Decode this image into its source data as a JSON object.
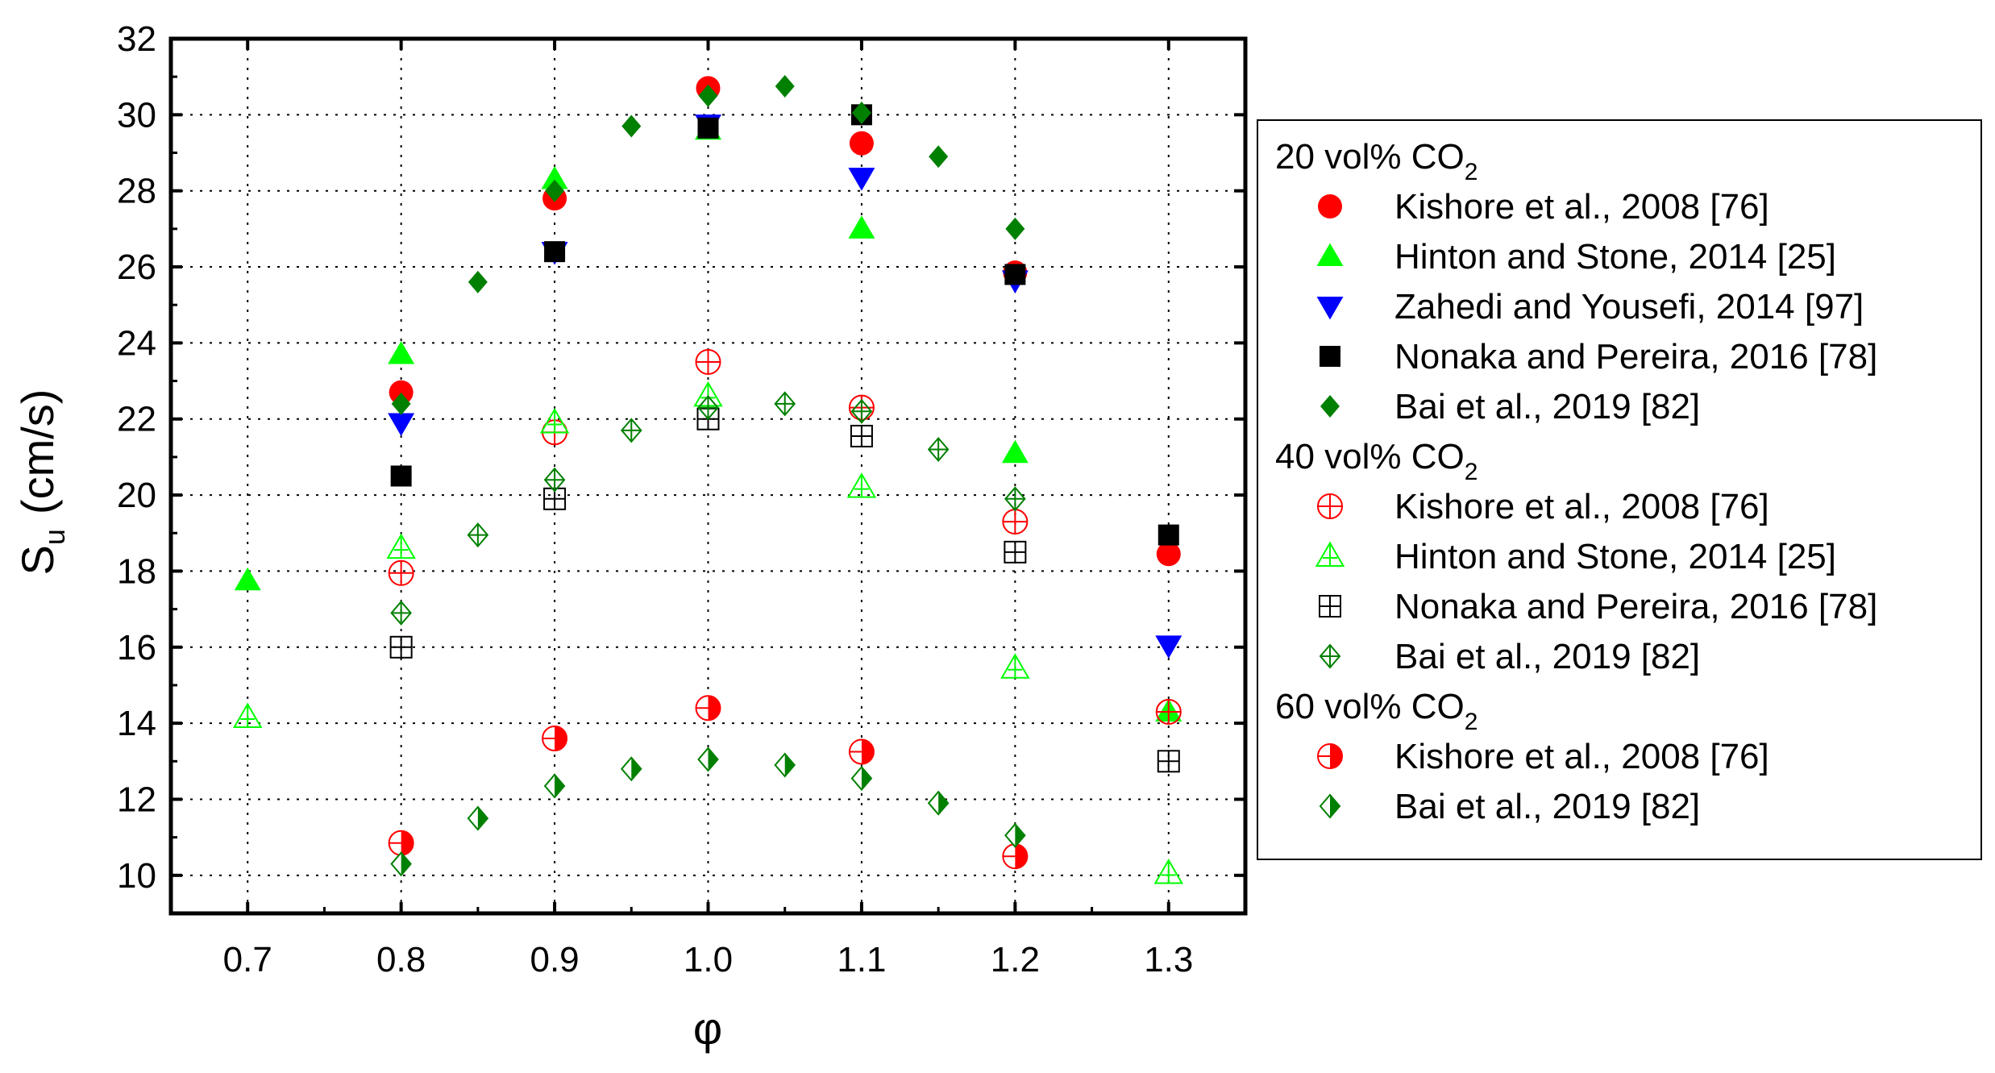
{
  "chart_data": {
    "type": "scatter",
    "xlabel": "φ",
    "ylabel_main": "S",
    "ylabel_sub": "u",
    "ylabel_unit": "(cm/s)",
    "xlim": [
      0.65,
      1.35
    ],
    "ylim": [
      9,
      32
    ],
    "x_ticks": [
      0.7,
      0.8,
      0.9,
      1.0,
      1.1,
      1.2,
      1.3
    ],
    "x_tick_labels": [
      "0.7",
      "0.8",
      "0.9",
      "1.0",
      "1.1",
      "1.2",
      "1.3"
    ],
    "y_ticks": [
      10,
      12,
      14,
      16,
      18,
      20,
      22,
      24,
      26,
      28,
      30,
      32
    ],
    "y_tick_labels": [
      "10",
      "12",
      "14",
      "16",
      "18",
      "20",
      "22",
      "24",
      "26",
      "28",
      "30",
      "32"
    ],
    "grid": true,
    "legend_position": "right, outside plot",
    "colors": {
      "red": "#ff0000",
      "bright_green": "#00ff00",
      "blue": "#0000ff",
      "black": "#000000",
      "dark_green": "#008000"
    },
    "groups": [
      {
        "heading": "20 vol% CO",
        "heading_sub": "2",
        "series": [
          {
            "name": "Kishore et al., 2008 [76]",
            "marker": "circle-filled",
            "color": "#ff0000",
            "points": [
              [
                0.8,
                22.7
              ],
              [
                0.9,
                27.8
              ],
              [
                1.0,
                30.7
              ],
              [
                1.1,
                29.25
              ],
              [
                1.2,
                25.85
              ],
              [
                1.3,
                18.45
              ]
            ]
          },
          {
            "name": "Hinton and Stone, 2014 [25]",
            "marker": "triangle-up-filled",
            "color": "#00ff00",
            "points": [
              [
                0.7,
                17.75
              ],
              [
                0.8,
                23.7
              ],
              [
                0.9,
                28.3
              ],
              [
                1.0,
                29.6
              ],
              [
                1.1,
                27.0
              ],
              [
                1.2,
                21.1
              ],
              [
                1.3,
                14.3
              ]
            ]
          },
          {
            "name": "Zahedi and Yousefi, 2014 [97]",
            "marker": "triangle-down-filled",
            "color": "#0000ff",
            "points": [
              [
                0.8,
                21.9
              ],
              [
                0.9,
                26.4
              ],
              [
                1.0,
                29.75
              ],
              [
                1.1,
                28.35
              ],
              [
                1.2,
                25.65
              ],
              [
                1.3,
                16.05
              ]
            ]
          },
          {
            "name": "Nonaka and Pereira, 2016 [78]",
            "marker": "square-filled",
            "color": "#000000",
            "points": [
              [
                0.8,
                20.5
              ],
              [
                0.9,
                26.4
              ],
              [
                1.0,
                29.65
              ],
              [
                1.1,
                30.0
              ],
              [
                1.2,
                25.8
              ],
              [
                1.3,
                18.95
              ]
            ]
          },
          {
            "name": "Bai et al., 2019 [82]",
            "marker": "diamond-filled",
            "color": "#008000",
            "points": [
              [
                0.8,
                22.4
              ],
              [
                0.85,
                25.6
              ],
              [
                0.9,
                28.0
              ],
              [
                0.95,
                29.7
              ],
              [
                1.0,
                30.5
              ],
              [
                1.05,
                30.75
              ],
              [
                1.1,
                30.05
              ],
              [
                1.15,
                28.9
              ],
              [
                1.2,
                27.0
              ]
            ]
          }
        ]
      },
      {
        "heading": "40 vol% CO",
        "heading_sub": "2",
        "series": [
          {
            "name": "Kishore et al., 2008 [76]",
            "marker": "circle-crossed",
            "color": "#ff0000",
            "points": [
              [
                0.8,
                17.95
              ],
              [
                0.9,
                21.65
              ],
              [
                1.0,
                23.5
              ],
              [
                1.1,
                22.3
              ],
              [
                1.2,
                19.3
              ],
              [
                1.3,
                14.3
              ]
            ]
          },
          {
            "name": "Hinton and Stone, 2014 [25]",
            "marker": "triangle-up-crossed",
            "color": "#00ff00",
            "points": [
              [
                0.7,
                14.15
              ],
              [
                0.8,
                18.6
              ],
              [
                0.9,
                21.9
              ],
              [
                1.0,
                22.6
              ],
              [
                1.1,
                20.2
              ],
              [
                1.2,
                15.45
              ],
              [
                1.3,
                10.05
              ]
            ]
          },
          {
            "name": "Nonaka and Pereira, 2016 [78]",
            "marker": "square-crossed",
            "color": "#000000",
            "points": [
              [
                0.8,
                16.0
              ],
              [
                0.9,
                19.9
              ],
              [
                1.0,
                22.0
              ],
              [
                1.1,
                21.55
              ],
              [
                1.2,
                18.5
              ],
              [
                1.3,
                13.0
              ]
            ]
          },
          {
            "name": "Bai et al., 2019 [82]",
            "marker": "diamond-crossed",
            "color": "#008000",
            "points": [
              [
                0.8,
                16.9
              ],
              [
                0.85,
                18.95
              ],
              [
                0.9,
                20.4
              ],
              [
                0.95,
                21.7
              ],
              [
                1.0,
                22.3
              ],
              [
                1.05,
                22.4
              ],
              [
                1.1,
                22.2
              ],
              [
                1.15,
                21.2
              ],
              [
                1.2,
                19.9
              ]
            ]
          }
        ]
      },
      {
        "heading": "60 vol% CO",
        "heading_sub": "2",
        "series": [
          {
            "name": "Kishore et al., 2008 [76]",
            "marker": "circle-half",
            "color": "#ff0000",
            "points": [
              [
                0.8,
                10.85
              ],
              [
                0.9,
                13.6
              ],
              [
                1.0,
                14.4
              ],
              [
                1.1,
                13.25
              ],
              [
                1.2,
                10.5
              ]
            ]
          },
          {
            "name": "Bai et al., 2019 [82]",
            "marker": "diamond-half",
            "color": "#008000",
            "points": [
              [
                0.8,
                10.3
              ],
              [
                0.85,
                11.5
              ],
              [
                0.9,
                12.35
              ],
              [
                0.95,
                12.8
              ],
              [
                1.0,
                13.05
              ],
              [
                1.05,
                12.9
              ],
              [
                1.1,
                12.55
              ],
              [
                1.15,
                11.9
              ],
              [
                1.2,
                11.05
              ]
            ]
          }
        ]
      }
    ]
  }
}
